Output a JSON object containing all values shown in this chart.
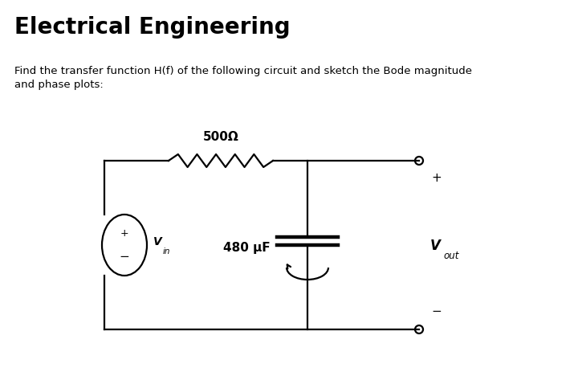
{
  "title": "Electrical Engineering",
  "subtitle": "Find the transfer function H(f) of the following circuit and sketch the Bode magnitude\nand phase plots:",
  "resistor_label": "500Ω",
  "capacitor_label": "480 μF",
  "vin_label": "V",
  "vin_sub": "in",
  "vout_label": "V",
  "vout_sub": "out",
  "bg_color": "#ffffff",
  "line_color": "#000000",
  "title_fontsize": 20,
  "subtitle_fontsize": 9.5,
  "label_fontsize": 10,
  "vsrc_label_fontsize": 10,
  "vsrc_sub_fontsize": 7.5
}
